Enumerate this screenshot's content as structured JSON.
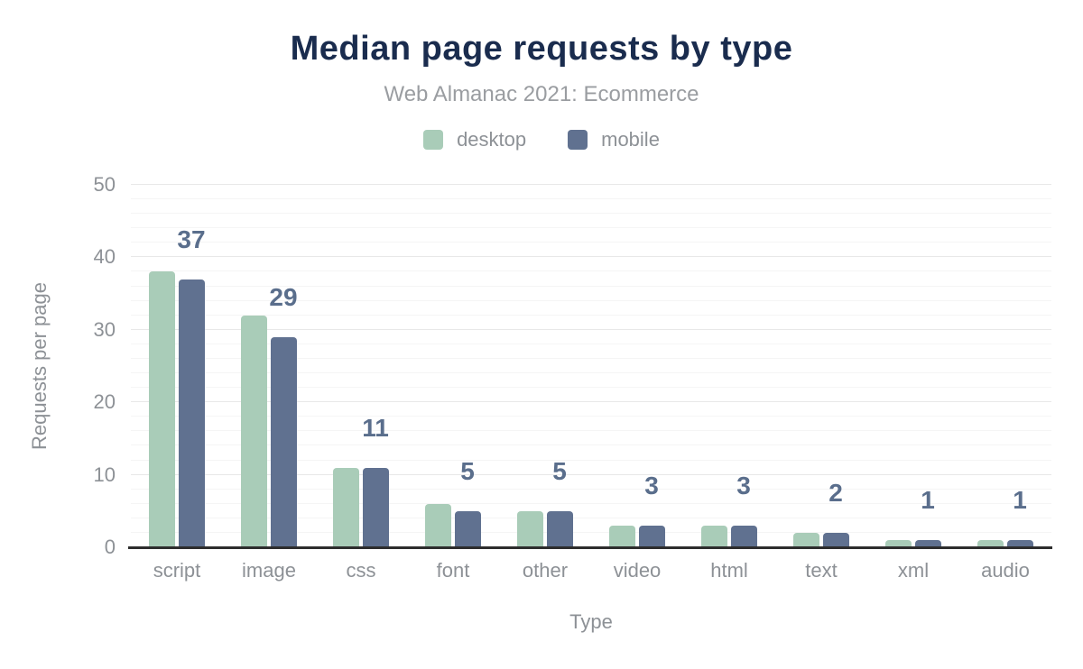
{
  "chart_data": {
    "type": "bar",
    "title": "Median page requests by type",
    "subtitle": "Web Almanac 2021: Ecommerce",
    "xlabel": "Type",
    "ylabel": "Requests per page",
    "categories": [
      "script",
      "image",
      "css",
      "font",
      "other",
      "video",
      "html",
      "text",
      "xml",
      "audio"
    ],
    "series": [
      {
        "name": "desktop",
        "color": "#a9ccb8",
        "values": [
          38,
          32,
          11,
          6,
          5,
          3,
          3,
          2,
          1,
          1
        ]
      },
      {
        "name": "mobile",
        "color": "#607190",
        "values": [
          37,
          29,
          11,
          5,
          5,
          3,
          3,
          2,
          1,
          1
        ]
      }
    ],
    "value_labels": {
      "attached_to_series": "mobile",
      "values": [
        "37",
        "29",
        "11",
        "5",
        "5",
        "3",
        "3",
        "2",
        "1",
        "1"
      ],
      "color": "#5a6e8c"
    },
    "ylim": [
      0,
      50
    ],
    "yticks": [
      "0",
      "10",
      "20",
      "30",
      "40",
      "50"
    ],
    "grid": {
      "major_step": 10,
      "minor_step": 2,
      "major_color": "#e8e8e8",
      "minor_color": "#f5f5f5"
    },
    "legend_position": "top",
    "colors": {
      "title": "#1a2c4e",
      "axis_text": "#8d9196",
      "axis_line": "#2d2d2d",
      "background": "#ffffff"
    }
  }
}
